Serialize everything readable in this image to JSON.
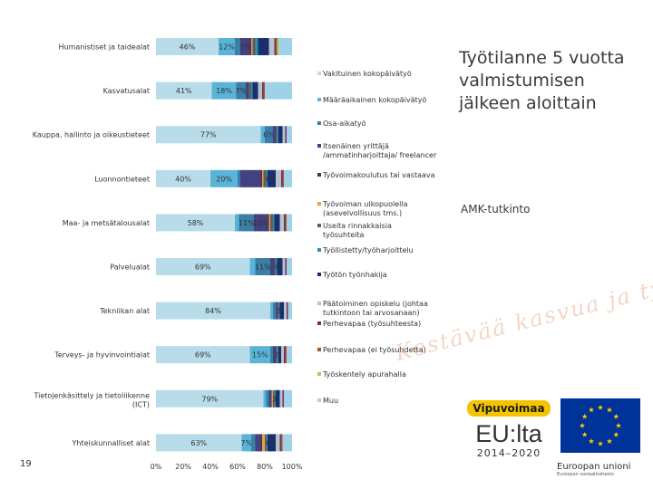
{
  "title": "Työtilanne 5 vuotta valmistumisen jälkeen aloittain",
  "subtitle": "AMK-tutkinto",
  "page_number": "19",
  "slogan": "Kestävää kasvua ja työtä -ohjelma",
  "logo": {
    "vipuvoimaa": "Vipuvoimaa",
    "eu_lta": "EU:lta",
    "years": "2014–2020",
    "eu_name": "Euroopan unioni",
    "eu_fund": "Euroopan sosiaalirahasto"
  },
  "colors": {
    "vakituinen": "#b8dcea",
    "maaraaikainen": "#5ab4d8",
    "osa_aikatyo": "#3b7ea8",
    "itsenainen": "#41427f",
    "tyovoimakoulutus": "#5c2a56",
    "tyovoiman_ulkopuolella": "#e8a23c",
    "useita": "#5e5e5e",
    "tyollistetty": "#2e8fb0",
    "tyoton": "#1a2f6e",
    "paatoiminen": "#b5c1cc",
    "perhevapaa_tyosuhde": "#7b2a5e",
    "perhevapaa_ei": "#a05a2c",
    "tyoskentely_apuraha": "#b9c64a",
    "muu": "#9fd1e8"
  },
  "chart_data": {
    "type": "bar",
    "orientation": "horizontal",
    "stacked": true,
    "xlim": [
      0,
      100
    ],
    "x_ticks": [
      "0%",
      "20%",
      "40%",
      "60%",
      "80%",
      "100%"
    ],
    "categories": [
      "Humanistiset ja taidealat",
      "Kasvatusalat",
      "Kauppa, hallinto ja oikeustieteet",
      "Luonnontieteet",
      "Maa- ja metsätalousalat",
      "Palvelualat",
      "Tekniikan alat",
      "Terveys- ja hyvinvointialat",
      "Tietojenkäsittely ja tietoliikenne (ICT)",
      "Yhteiskunnalliset alat"
    ],
    "series": [
      {
        "name": "Vakituinen kokopäivätyö",
        "color_key": "vakituinen",
        "values": [
          46,
          41,
          77,
          40,
          58,
          69,
          84,
          69,
          79,
          63
        ],
        "labels": [
          "46%",
          "41%",
          "77%",
          "40%",
          "58%",
          "69%",
          "84%",
          "69%",
          "79%",
          "63%"
        ]
      },
      {
        "name": "Määräaikainen kokopäivätyö",
        "color_key": "maaraaikainen",
        "values": [
          12,
          18,
          3,
          20,
          3,
          4,
          2,
          15,
          2,
          7
        ],
        "labels": [
          "12%",
          "18%",
          "",
          "20%",
          "",
          "",
          "",
          "15%",
          "",
          "7%"
        ]
      },
      {
        "name": "Osa-aikatyö",
        "color_key": "osa_aikatyo",
        "values": [
          4,
          7,
          6,
          2,
          11,
          11,
          2,
          2,
          2,
          3
        ],
        "labels": [
          "",
          "7%",
          "6%",
          "",
          "11%",
          "11%",
          "",
          "",
          "",
          ""
        ]
      },
      {
        "name": "Itsenäinen yrittäjä /ammatinharjoittaja/ freelancer",
        "color_key": "itsenainen",
        "values": [
          7,
          2,
          2,
          15,
          10,
          3,
          1,
          2,
          2,
          4
        ],
        "labels": [
          "7%",
          "",
          "",
          "",
          "10%",
          "",
          "",
          "",
          "",
          ""
        ]
      },
      {
        "name": "Työvoimakoulutus tai vastaava",
        "color_key": "tyovoimakoulutus",
        "values": [
          1,
          0,
          0,
          1,
          1,
          0,
          0,
          0,
          0,
          1
        ],
        "labels": [
          "",
          "",
          "",
          "",
          "",
          "",
          "",
          "",
          "",
          ""
        ]
      },
      {
        "name": "Työvoiman ulkopuolella (asevelvollisuus tms.)",
        "color_key": "tyovoiman_ulkopuolella",
        "values": [
          1,
          0,
          0,
          1,
          1,
          0,
          0,
          0,
          1,
          2
        ],
        "labels": [
          "",
          "",
          "",
          "",
          "",
          "",
          "",
          "",
          "",
          ""
        ]
      },
      {
        "name": "Useita rinnakkaisia työsuhteita",
        "color_key": "useita",
        "values": [
          2,
          2,
          1,
          2,
          2,
          1,
          1,
          1,
          1,
          1
        ],
        "labels": [
          "",
          "",
          "",
          "",
          "",
          "",
          "",
          "",
          "",
          ""
        ]
      },
      {
        "name": "Työllistetty/työharjoittelu",
        "color_key": "tyollistetty",
        "values": [
          2,
          1,
          1,
          1,
          1,
          1,
          1,
          1,
          1,
          1
        ],
        "labels": [
          "",
          "",
          "",
          "",
          "",
          "",
          "",
          "",
          "",
          ""
        ]
      },
      {
        "name": "Työtön työnhakija",
        "color_key": "tyoton",
        "values": [
          8,
          4,
          3,
          6,
          4,
          4,
          3,
          2,
          3,
          6
        ],
        "labels": [
          "",
          "",
          "",
          "6%",
          "",
          "4%",
          "3%",
          "2%",
          "3%",
          "6%"
        ]
      },
      {
        "name": "Päätoiminen opiskelu (johtaa tutkintoon tai arvosanaan)",
        "color_key": "paatoiminen",
        "values": [
          4,
          3,
          2,
          4,
          3,
          2,
          2,
          2,
          2,
          3
        ],
        "labels": [
          "",
          "",
          "",
          "",
          "",
          "",
          "",
          "",
          "",
          ""
        ]
      },
      {
        "name": "Perhevapaa (työsuhteesta)",
        "color_key": "perhevapaa_tyosuhde",
        "values": [
          1,
          1,
          1,
          1,
          1,
          1,
          1,
          1,
          1,
          1
        ],
        "labels": [
          "",
          "",
          "",
          "",
          "",
          "",
          "",
          "",
          "",
          ""
        ]
      },
      {
        "name": "Perhevapaa (ei työsuhdetta)",
        "color_key": "perhevapaa_ei",
        "values": [
          1,
          1,
          0,
          1,
          1,
          0,
          0,
          1,
          0,
          1
        ],
        "labels": [
          "",
          "",
          "",
          "",
          "",
          "",
          "",
          "",
          "",
          ""
        ]
      },
      {
        "name": "Työskentely apurahalla",
        "color_key": "tyoskentely_apuraha",
        "values": [
          1,
          0,
          0,
          0,
          0,
          0,
          0,
          0,
          0,
          0
        ],
        "labels": [
          "",
          "",
          "",
          "",
          "",
          "",
          "",
          "",
          "",
          ""
        ]
      },
      {
        "name": "Muu",
        "color_key": "muu",
        "values": [
          10,
          20,
          4,
          6,
          4,
          4,
          3,
          4,
          6,
          7
        ],
        "labels": [
          "",
          "",
          "",
          "",
          "",
          "",
          "",
          "",
          "",
          ""
        ]
      }
    ]
  }
}
